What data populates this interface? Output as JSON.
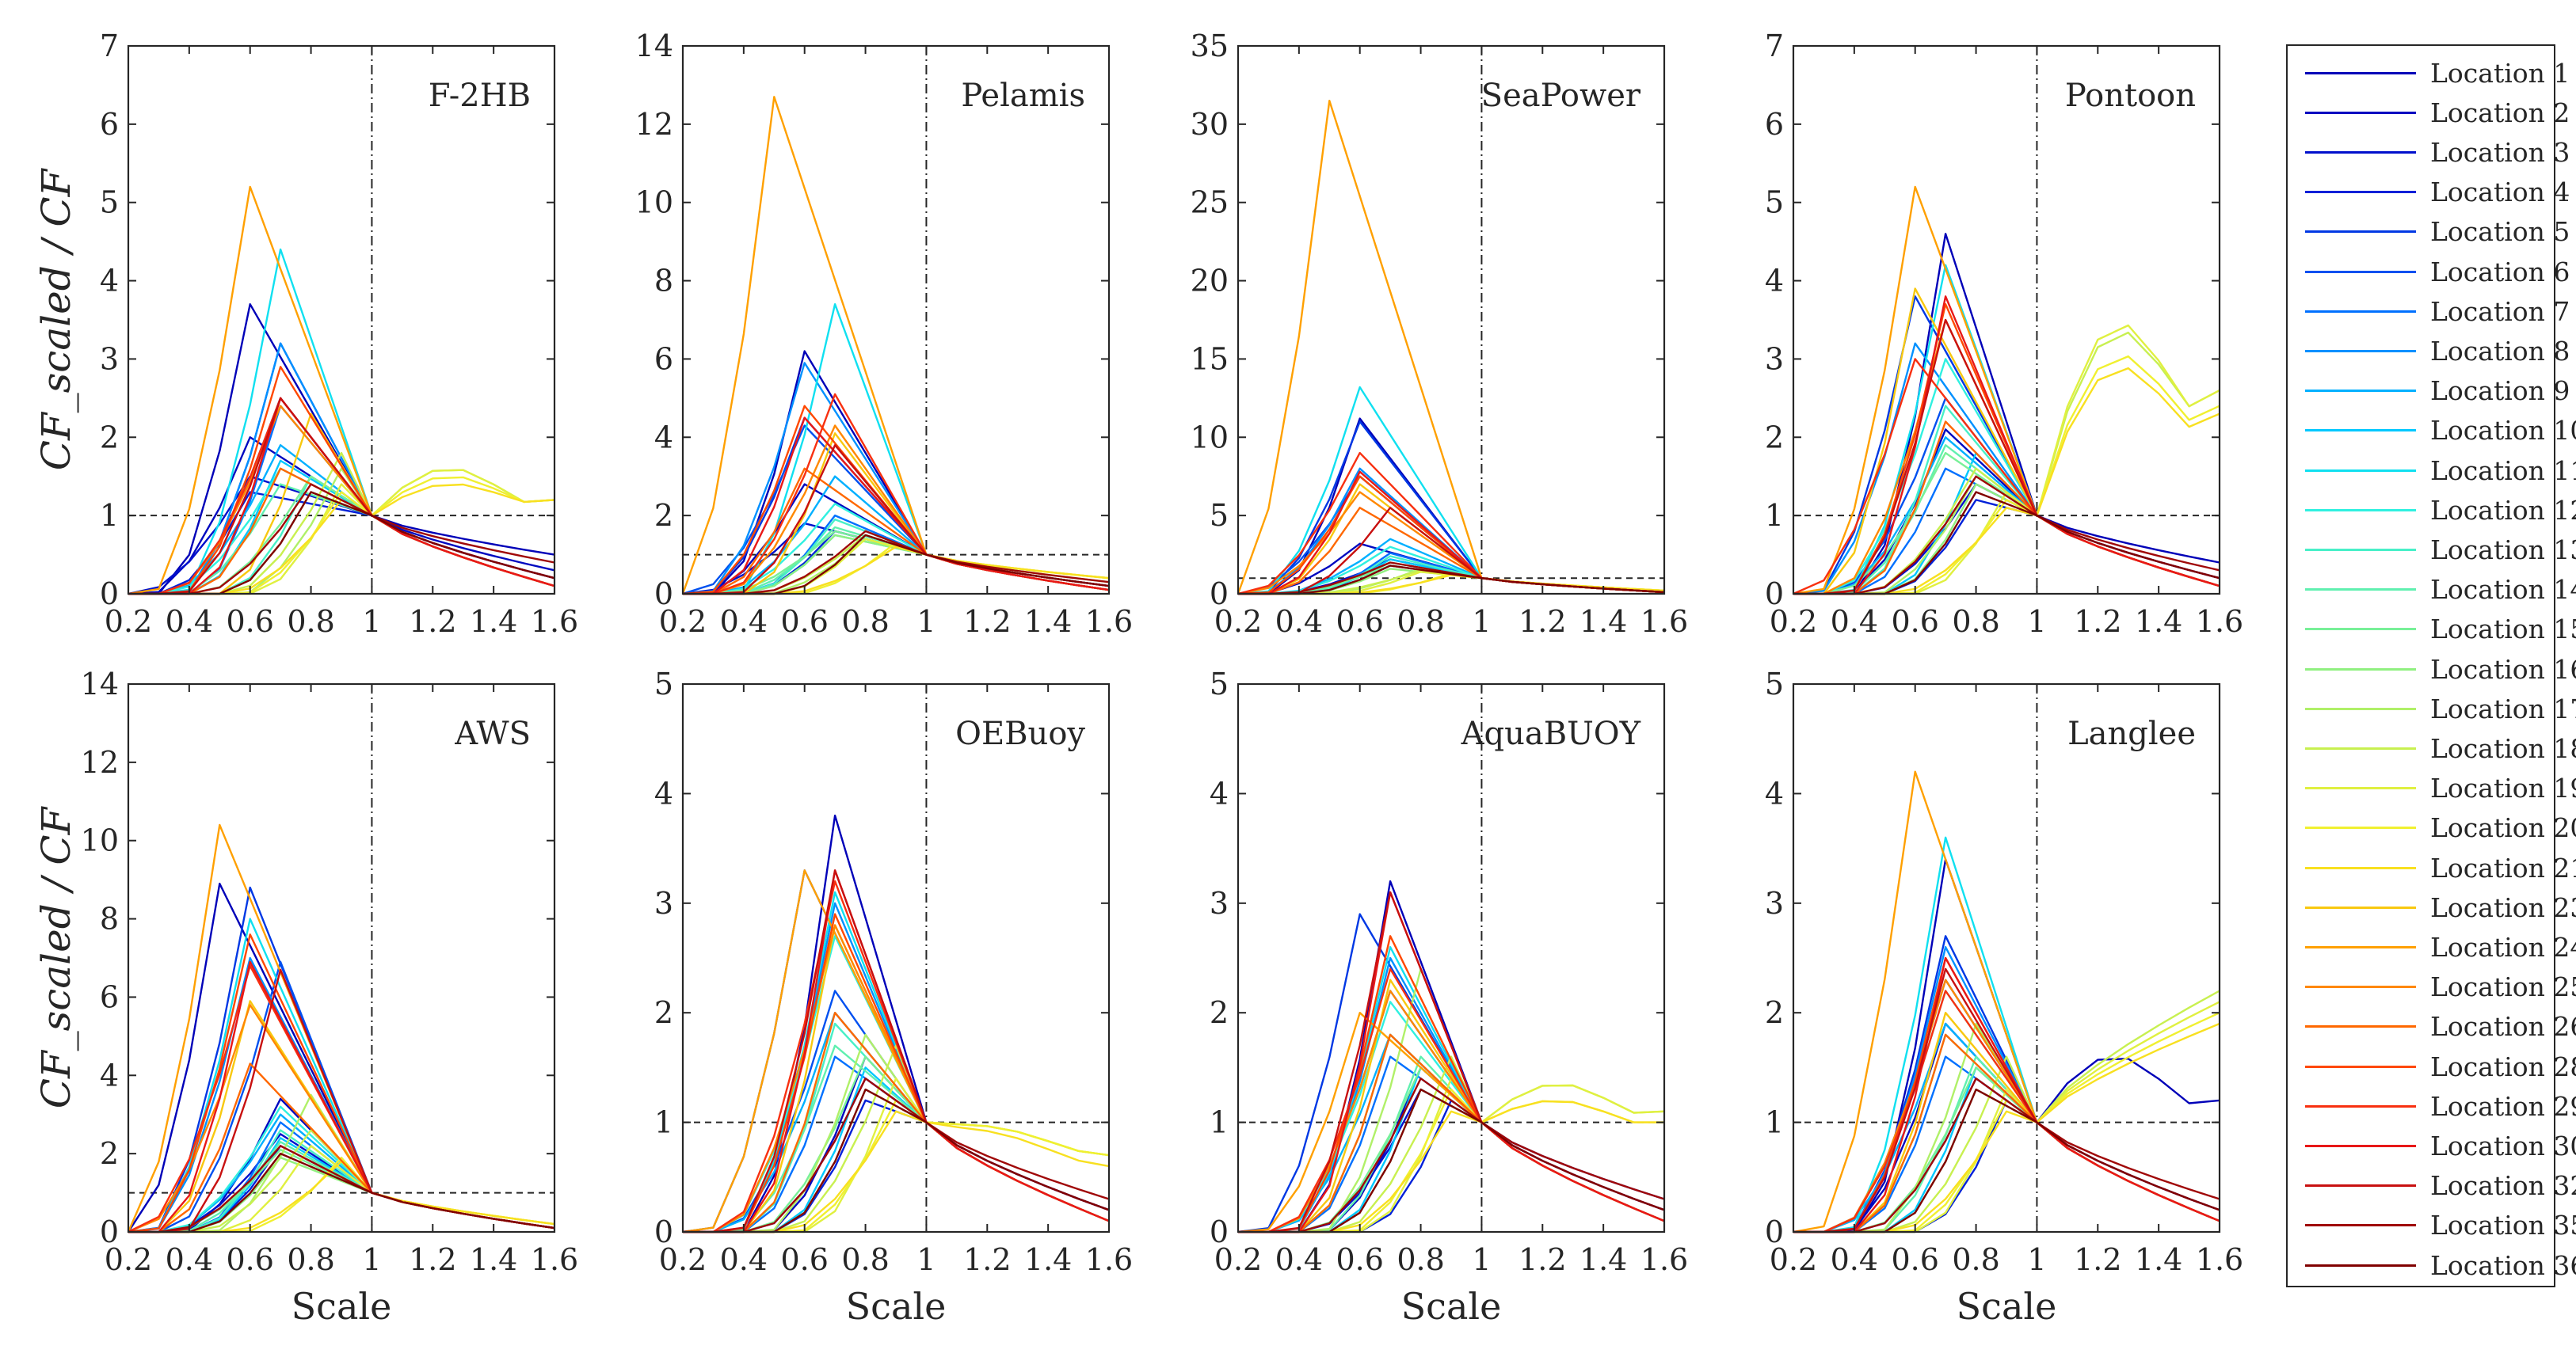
{
  "figure": {
    "ylabel_top": "CF_scaled / CF",
    "ylabel_bottom": "CF_scaled / CF",
    "xlabel": "Scale"
  },
  "legend": {
    "entries": [
      {
        "label": "Location 1",
        "color": "#0000b8"
      },
      {
        "label": "Location 2",
        "color": "#0008c0"
      },
      {
        "label": "Location 3",
        "color": "#0010cc"
      },
      {
        "label": "Location 4",
        "color": "#0020d8"
      },
      {
        "label": "Location 5",
        "color": "#0038e4"
      },
      {
        "label": "Location 6",
        "color": "#0050f0"
      },
      {
        "label": "Location 7",
        "color": "#0070ff"
      },
      {
        "label": "Location 8",
        "color": "#0090ff"
      },
      {
        "label": "Location 9",
        "color": "#00b0ff"
      },
      {
        "label": "Location 10",
        "color": "#00c8ff"
      },
      {
        "label": "Location 11",
        "color": "#10e0f0"
      },
      {
        "label": "Location 12",
        "color": "#30f0e0"
      },
      {
        "label": "Location 13",
        "color": "#48f0c8"
      },
      {
        "label": "Location 14",
        "color": "#60f0b0"
      },
      {
        "label": "Location 15",
        "color": "#78f098"
      },
      {
        "label": "Location 16",
        "color": "#90f080"
      },
      {
        "label": "Location 17",
        "color": "#b0f068"
      },
      {
        "label": "Location 18",
        "color": "#c8f050"
      },
      {
        "label": "Location 19",
        "color": "#e0f040"
      },
      {
        "label": "Location 20",
        "color": "#f0f030"
      },
      {
        "label": "Location 21",
        "color": "#f8e020"
      },
      {
        "label": "Location 23",
        "color": "#f8c810"
      },
      {
        "label": "Location 24",
        "color": "#ffa000"
      },
      {
        "label": "Location 25",
        "color": "#ff8800"
      },
      {
        "label": "Location 26",
        "color": "#ff6800"
      },
      {
        "label": "Location 28",
        "color": "#ff4800"
      },
      {
        "label": "Location 29",
        "color": "#f83010"
      },
      {
        "label": "Location 30",
        "color": "#e81818"
      },
      {
        "label": "Location 32",
        "color": "#c81010"
      },
      {
        "label": "Location 35",
        "color": "#a00808"
      },
      {
        "label": "Location 36",
        "color": "#800000"
      }
    ]
  },
  "chart_data": [
    {
      "type": "line",
      "title": "F-2HB",
      "xlim": [
        0.2,
        1.6
      ],
      "ylim": [
        0,
        7
      ],
      "yticks": [
        0,
        1,
        2,
        3,
        4,
        5,
        6,
        7
      ],
      "xticks": [
        "0.2",
        "0.4",
        "0.6",
        "0.8",
        "1",
        "1.2",
        "1.4",
        "1.6"
      ],
      "reference_y": 1,
      "peak_scales": [
        0.6,
        0.6,
        0.6,
        0.6,
        0.7,
        0.7,
        0.7,
        0.7,
        0.7,
        0.7,
        0.7,
        0.7,
        0.8,
        0.7,
        0.8,
        0.8,
        0.9,
        0.9,
        0.9,
        0.9,
        0.9,
        0.8,
        0.6,
        0.7,
        0.7,
        0.7,
        0.7,
        0.7,
        0.7,
        0.8,
        0.8
      ],
      "peak_values": [
        3.7,
        2.0,
        1.5,
        1.3,
        3.2,
        2.5,
        2.4,
        3.2,
        1.9,
        1.7,
        4.4,
        1.6,
        1.5,
        1.4,
        1.5,
        1.3,
        1.6,
        1.8,
        1.4,
        1.3,
        1.2,
        2.3,
        5.2,
        2.4,
        1.6,
        2.9,
        2.5,
        2.5,
        2.5,
        1.4,
        1.3
      ],
      "right_values": [
        0.5,
        0.3,
        0.2,
        0.2,
        0.1,
        0.1,
        0.1,
        0.1,
        0.1,
        0.1,
        0.1,
        0.1,
        0.1,
        0.1,
        0.1,
        0.1,
        0.1,
        1.2,
        1.2,
        1.2,
        1.2,
        0.1,
        0.1,
        0.1,
        0.1,
        0.1,
        0.1,
        0.1,
        0.2,
        0.4,
        0.2
      ],
      "right_bumps": [
        0,
        0,
        0,
        0,
        0,
        0,
        0,
        0,
        0,
        0,
        0,
        0,
        0,
        0,
        0,
        0,
        0,
        0.5,
        0.5,
        0.4,
        0.3,
        0,
        0,
        0,
        0,
        0,
        0,
        0,
        0,
        0,
        0
      ]
    },
    {
      "type": "line",
      "title": "Pelamis",
      "xlim": [
        0.2,
        1.6
      ],
      "ylim": [
        0,
        14
      ],
      "yticks": [
        0,
        2,
        4,
        6,
        8,
        10,
        12,
        14
      ],
      "xticks": [
        "0.2",
        "0.4",
        "0.6",
        "0.8",
        "1",
        "1.2",
        "1.4",
        "1.6"
      ],
      "reference_y": 1,
      "peak_scales": [
        0.6,
        0.6,
        0.6,
        0.7,
        0.6,
        0.6,
        0.7,
        0.6,
        0.7,
        0.7,
        0.7,
        0.7,
        0.7,
        0.7,
        0.7,
        0.7,
        0.8,
        0.8,
        0.8,
        0.9,
        0.9,
        0.7,
        0.5,
        0.7,
        0.6,
        0.6,
        0.7,
        0.6,
        0.7,
        0.8,
        0.8
      ],
      "peak_values": [
        6.2,
        2.8,
        1.8,
        1.6,
        4.5,
        4.3,
        2.0,
        5.9,
        3.0,
        1.5,
        7.4,
        2.3,
        1.9,
        1.7,
        1.6,
        1.5,
        1.4,
        1.5,
        1.4,
        1.3,
        1.2,
        4.1,
        12.7,
        4.3,
        3.2,
        4.8,
        5.1,
        4.5,
        3.8,
        1.6,
        1.5
      ],
      "right_values": [
        0.2,
        0.2,
        0.2,
        0.1,
        0.1,
        0.1,
        0.1,
        0.1,
        0.1,
        0.1,
        0.1,
        0.1,
        0.1,
        0.1,
        0.1,
        0.1,
        0.2,
        0.3,
        0.4,
        0.4,
        0.4,
        0.1,
        0.1,
        0.1,
        0.1,
        0.1,
        0.1,
        0.1,
        0.2,
        0.3,
        0.2
      ],
      "right_bumps": [
        0,
        0,
        0,
        0,
        0,
        0,
        0,
        0,
        0,
        0,
        0,
        0,
        0,
        0,
        0,
        0,
        0,
        0,
        0,
        0,
        0,
        0,
        0,
        0,
        0,
        0,
        0,
        0,
        0,
        0,
        0
      ]
    },
    {
      "type": "line",
      "title": "SeaPower",
      "xlim": [
        0.2,
        1.6
      ],
      "ylim": [
        0,
        35
      ],
      "yticks": [
        0,
        5,
        10,
        15,
        20,
        25,
        30,
        35
      ],
      "xticks": [
        "0.2",
        "0.4",
        "0.6",
        "0.8",
        "1",
        "1.2",
        "1.4",
        "1.6"
      ],
      "reference_y": 1,
      "peak_scales": [
        0.6,
        0.6,
        0.7,
        0.7,
        0.6,
        0.6,
        0.7,
        0.6,
        0.7,
        0.7,
        0.6,
        0.7,
        0.7,
        0.7,
        0.7,
        0.7,
        0.8,
        0.8,
        0.8,
        0.9,
        0.9,
        0.6,
        0.5,
        0.6,
        0.6,
        0.6,
        0.6,
        0.6,
        0.7,
        0.7,
        0.7
      ],
      "peak_values": [
        11.2,
        3.2,
        2.2,
        1.8,
        11.0,
        7.5,
        2.6,
        8.0,
        3.5,
        2.2,
        13.2,
        3.0,
        2.4,
        2.0,
        1.8,
        1.6,
        1.6,
        1.5,
        1.4,
        1.3,
        1.2,
        7.0,
        31.5,
        6.5,
        5.5,
        7.5,
        9.0,
        7.8,
        5.5,
        2.0,
        1.8
      ],
      "right_values": [
        0.1,
        0.1,
        0.1,
        0.1,
        0.1,
        0.1,
        0.1,
        0.1,
        0.1,
        0.1,
        0.1,
        0.1,
        0.1,
        0.1,
        0.1,
        0.1,
        0.1,
        0.2,
        0.2,
        0.2,
        0.2,
        0.1,
        0.1,
        0.1,
        0.1,
        0.1,
        0.1,
        0.1,
        0.1,
        0.1,
        0.1
      ],
      "right_bumps": [
        0,
        0,
        0,
        0,
        0,
        0,
        0,
        0,
        0,
        0,
        0,
        0,
        0,
        0,
        0,
        0,
        0,
        0,
        0,
        0,
        0,
        0,
        0,
        0,
        0,
        0,
        0,
        0,
        0,
        0,
        0
      ]
    },
    {
      "type": "line",
      "title": "Pontoon",
      "xlim": [
        0.2,
        1.6
      ],
      "ylim": [
        0,
        7
      ],
      "yticks": [
        0,
        1,
        2,
        3,
        4,
        5,
        6,
        7
      ],
      "xticks": [
        "0.2",
        "0.4",
        "0.6",
        "0.8",
        "1",
        "1.2",
        "1.4",
        "1.6"
      ],
      "reference_y": 1,
      "peak_scales": [
        0.7,
        0.7,
        0.8,
        0.8,
        0.6,
        0.7,
        0.7,
        0.6,
        0.7,
        0.8,
        0.7,
        0.7,
        0.7,
        0.7,
        0.7,
        0.8,
        0.8,
        0.8,
        0.9,
        0.9,
        0.9,
        0.6,
        0.6,
        0.7,
        0.7,
        0.7,
        0.6,
        0.7,
        0.7,
        0.8,
        0.8
      ],
      "peak_values": [
        4.6,
        2.1,
        1.4,
        1.2,
        3.8,
        2.5,
        1.6,
        3.2,
        2.0,
        1.8,
        4.2,
        3.0,
        2.4,
        1.9,
        1.8,
        1.4,
        1.5,
        1.6,
        1.3,
        1.2,
        1.1,
        3.9,
        5.2,
        3.5,
        2.2,
        3.7,
        3.0,
        3.8,
        3.5,
        1.5,
        1.3
      ],
      "right_values": [
        0.4,
        0.2,
        0.2,
        0.1,
        0.1,
        0.1,
        0.1,
        0.1,
        0.1,
        0.1,
        0.1,
        0.1,
        0.1,
        0.1,
        0.1,
        0.1,
        0.1,
        2.6,
        2.6,
        2.4,
        2.3,
        0.1,
        0.1,
        0.1,
        0.1,
        0.1,
        0.1,
        0.1,
        0.2,
        0.3,
        0.2
      ],
      "right_bumps": [
        0,
        0,
        0,
        0,
        0,
        0,
        0,
        0,
        0,
        0,
        0,
        0,
        0,
        0,
        0,
        0,
        0,
        1.5,
        1.6,
        1.3,
        1.2,
        0,
        0,
        0,
        0,
        0,
        0,
        0,
        0,
        0,
        0
      ]
    },
    {
      "type": "line",
      "title": "AWS",
      "xlim": [
        0.2,
        1.6
      ],
      "ylim": [
        0,
        14
      ],
      "yticks": [
        0,
        2,
        4,
        6,
        8,
        10,
        12,
        14
      ],
      "xticks": [
        "0.2",
        "0.4",
        "0.6",
        "0.8",
        "1",
        "1.2",
        "1.4",
        "1.6"
      ],
      "reference_y": 1,
      "peak_scales": [
        0.5,
        0.7,
        0.7,
        0.7,
        0.6,
        0.7,
        0.7,
        0.6,
        0.7,
        0.7,
        0.6,
        0.7,
        0.7,
        0.7,
        0.7,
        0.7,
        0.8,
        0.8,
        0.8,
        0.9,
        0.9,
        0.6,
        0.5,
        0.6,
        0.6,
        0.6,
        0.6,
        0.6,
        0.7,
        0.7,
        0.7
      ],
      "peak_values": [
        8.9,
        3.4,
        2.5,
        2.2,
        8.8,
        6.9,
        2.8,
        7.0,
        3.0,
        2.4,
        8.0,
        3.2,
        2.6,
        2.3,
        2.1,
        1.9,
        3.5,
        2.6,
        2.2,
        1.9,
        1.8,
        5.9,
        10.4,
        5.8,
        4.3,
        7.6,
        6.8,
        6.9,
        6.7,
        2.2,
        2.0
      ],
      "right_values": [
        0.1,
        0.1,
        0.1,
        0.1,
        0.1,
        0.1,
        0.1,
        0.1,
        0.1,
        0.1,
        0.1,
        0.1,
        0.1,
        0.1,
        0.1,
        0.1,
        0.1,
        0.2,
        0.2,
        0.2,
        0.2,
        0.1,
        0.1,
        0.1,
        0.1,
        0.1,
        0.1,
        0.1,
        0.1,
        0.1,
        0.1
      ],
      "right_bumps": [
        0,
        0,
        0,
        0,
        0,
        0,
        0,
        0,
        0,
        0,
        0,
        0,
        0,
        0,
        0,
        0,
        0,
        0,
        0,
        0,
        0,
        0,
        0,
        0,
        0,
        0,
        0,
        0,
        0,
        0,
        0
      ]
    },
    {
      "type": "line",
      "title": "OEBuoy",
      "xlim": [
        0.2,
        1.6
      ],
      "ylim": [
        0,
        5
      ],
      "yticks": [
        0,
        1,
        2,
        3,
        4,
        5
      ],
      "xticks": [
        "0.2",
        "0.4",
        "0.6",
        "0.8",
        "1",
        "1.2",
        "1.4",
        "1.6"
      ],
      "reference_y": 1,
      "peak_scales": [
        0.7,
        0.8,
        0.8,
        0.8,
        0.6,
        0.7,
        0.7,
        0.7,
        0.7,
        0.8,
        0.7,
        0.7,
        0.7,
        0.7,
        0.8,
        0.8,
        0.8,
        0.9,
        0.9,
        0.9,
        0.9,
        0.7,
        0.6,
        0.7,
        0.7,
        0.7,
        0.7,
        0.7,
        0.7,
        0.8,
        0.8
      ],
      "peak_values": [
        3.8,
        1.6,
        1.4,
        1.2,
        3.3,
        2.2,
        1.6,
        3.0,
        2.0,
        1.5,
        3.1,
        2.7,
        1.9,
        1.7,
        1.6,
        1.3,
        1.8,
        1.7,
        1.4,
        1.2,
        1.1,
        2.8,
        3.3,
        2.8,
        2.0,
        2.9,
        3.2,
        3.3,
        3.3,
        1.4,
        1.3
      ],
      "right_values": [
        0.2,
        0.2,
        0.2,
        0.1,
        0.1,
        0.1,
        0.1,
        0.1,
        0.1,
        0.1,
        0.1,
        0.1,
        0.1,
        0.1,
        0.1,
        0.1,
        0.1,
        0.7,
        0.7,
        0.7,
        0.6,
        0.1,
        0.1,
        0.1,
        0.1,
        0.1,
        0.1,
        0.1,
        0.2,
        0.3,
        0.2
      ],
      "right_bumps": [
        0,
        0,
        0,
        0,
        0,
        0,
        0,
        0,
        0,
        0,
        0,
        0,
        0,
        0,
        0,
        0,
        0,
        0.1,
        0.1,
        0.1,
        0.1,
        0,
        0,
        0,
        0,
        0,
        0,
        0,
        0,
        0,
        0
      ]
    },
    {
      "type": "line",
      "title": "AquaBUOY",
      "xlim": [
        0.2,
        1.6
      ],
      "ylim": [
        0,
        5
      ],
      "yticks": [
        0,
        1,
        2,
        3,
        4,
        5
      ],
      "xticks": [
        "0.2",
        "0.4",
        "0.6",
        "0.8",
        "1",
        "1.2",
        "1.4",
        "1.6"
      ],
      "reference_y": 1,
      "peak_scales": [
        0.7,
        0.8,
        0.8,
        0.9,
        0.6,
        0.7,
        0.7,
        0.7,
        0.7,
        0.8,
        0.7,
        0.7,
        0.7,
        0.8,
        0.8,
        0.8,
        0.8,
        0.9,
        0.9,
        0.9,
        0.9,
        0.7,
        0.6,
        0.7,
        0.7,
        0.7,
        0.7,
        0.7,
        0.7,
        0.8,
        0.8
      ],
      "peak_values": [
        3.2,
        1.5,
        1.3,
        1.2,
        2.9,
        2.2,
        1.6,
        2.5,
        1.8,
        1.5,
        2.6,
        2.1,
        1.8,
        1.6,
        1.5,
        1.3,
        2.4,
        1.6,
        1.4,
        1.3,
        1.1,
        2.3,
        2.0,
        2.2,
        1.8,
        2.7,
        2.4,
        3.1,
        3.1,
        1.4,
        1.3
      ],
      "right_values": [
        0.3,
        0.2,
        0.2,
        0.1,
        0.1,
        0.1,
        0.1,
        0.1,
        0.1,
        0.1,
        0.1,
        0.1,
        0.1,
        0.1,
        0.1,
        0.1,
        0.1,
        1.1,
        1.1,
        1.0,
        1.0,
        0.1,
        0.1,
        0.1,
        0.1,
        0.1,
        0.1,
        0.1,
        0.2,
        0.3,
        0.2
      ],
      "right_bumps": [
        0,
        0,
        0,
        0,
        0,
        0,
        0,
        0,
        0,
        0,
        0,
        0,
        0,
        0,
        0,
        0,
        0,
        0.3,
        0.3,
        0.2,
        0.2,
        0,
        0,
        0,
        0,
        0,
        0,
        0,
        0,
        0,
        0
      ]
    },
    {
      "type": "line",
      "title": "Langlee",
      "xlim": [
        0.2,
        1.6
      ],
      "ylim": [
        0,
        5
      ],
      "yticks": [
        0,
        1,
        2,
        3,
        4,
        5
      ],
      "xticks": [
        "0.2",
        "0.4",
        "0.6",
        "0.8",
        "1",
        "1.2",
        "1.4",
        "1.6"
      ],
      "reference_y": 1,
      "peak_scales": [
        0.7,
        0.7,
        0.8,
        0.9,
        0.7,
        0.7,
        0.7,
        0.7,
        0.7,
        0.8,
        0.7,
        0.7,
        0.7,
        0.8,
        0.8,
        0.8,
        0.8,
        0.9,
        0.9,
        0.9,
        0.9,
        0.7,
        0.6,
        0.7,
        0.7,
        0.7,
        0.7,
        0.7,
        0.7,
        0.8,
        0.8
      ],
      "peak_values": [
        3.4,
        1.9,
        1.4,
        1.2,
        2.7,
        2.3,
        1.6,
        2.6,
        1.9,
        1.5,
        3.6,
        2.2,
        1.8,
        1.6,
        1.5,
        1.3,
        1.9,
        1.6,
        1.3,
        1.2,
        1.1,
        2.0,
        4.2,
        2.3,
        1.8,
        2.5,
        2.2,
        2.5,
        2.4,
        1.4,
        1.3
      ],
      "right_values": [
        1.2,
        0.2,
        0.2,
        0.1,
        0.1,
        0.1,
        0.1,
        0.1,
        0.1,
        0.1,
        0.1,
        0.1,
        0.1,
        0.1,
        0.1,
        0.1,
        0.1,
        2.2,
        2.1,
        2.0,
        1.9,
        0.1,
        0.1,
        0.1,
        0.1,
        0.1,
        0.1,
        0.1,
        0.2,
        0.3,
        0.2
      ],
      "right_bumps": [
        0.5,
        0,
        0,
        0,
        0,
        0,
        0,
        0,
        0,
        0,
        0,
        0,
        0,
        0,
        0,
        0,
        0,
        0,
        0,
        0,
        0,
        0,
        0,
        0,
        0,
        0,
        0,
        0,
        0,
        0,
        0
      ]
    }
  ]
}
